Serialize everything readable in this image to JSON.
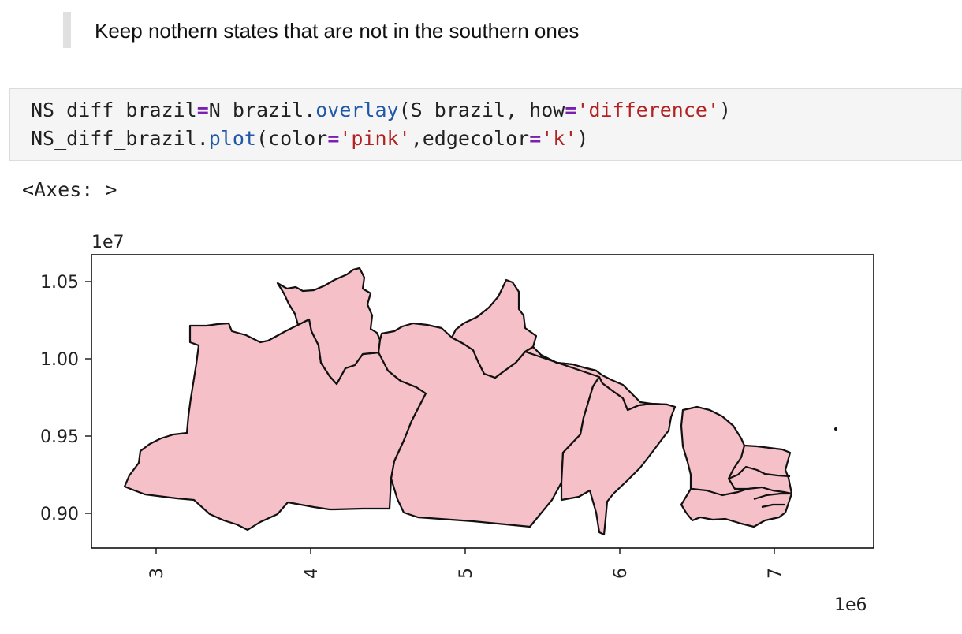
{
  "markdown": {
    "text": "Keep nothern states that are not in the southern ones"
  },
  "code": {
    "line1": {
      "var": "NS_diff_brazil",
      "eq": "=",
      "obj": "N_brazil.",
      "method": "overlay",
      "args_open": "(S_brazil, how",
      "eq2": "=",
      "str": "'difference'",
      "close": ")"
    },
    "line2": {
      "obj": "NS_diff_brazil.",
      "method": "plot",
      "open": "(color",
      "eq": "=",
      "str1": "'pink'",
      "mid": ",edgecolor",
      "eq2": "=",
      "str2": "'k'",
      "close": ")"
    }
  },
  "output": {
    "repr": "<Axes: >"
  },
  "chart_data": {
    "type": "map",
    "fill_color": "#f5c0c8",
    "edge_color": "#111111",
    "x_offset_label": "1e6",
    "y_offset_label": "1e7",
    "xticks": [
      "3",
      "4",
      "5",
      "6",
      "7"
    ],
    "yticks": [
      "1.05",
      "1.00",
      "0.95",
      "0.90"
    ],
    "xlim": [
      2.6,
      7.65
    ],
    "ylim": [
      8.76,
      10.68
    ],
    "grid": false
  }
}
